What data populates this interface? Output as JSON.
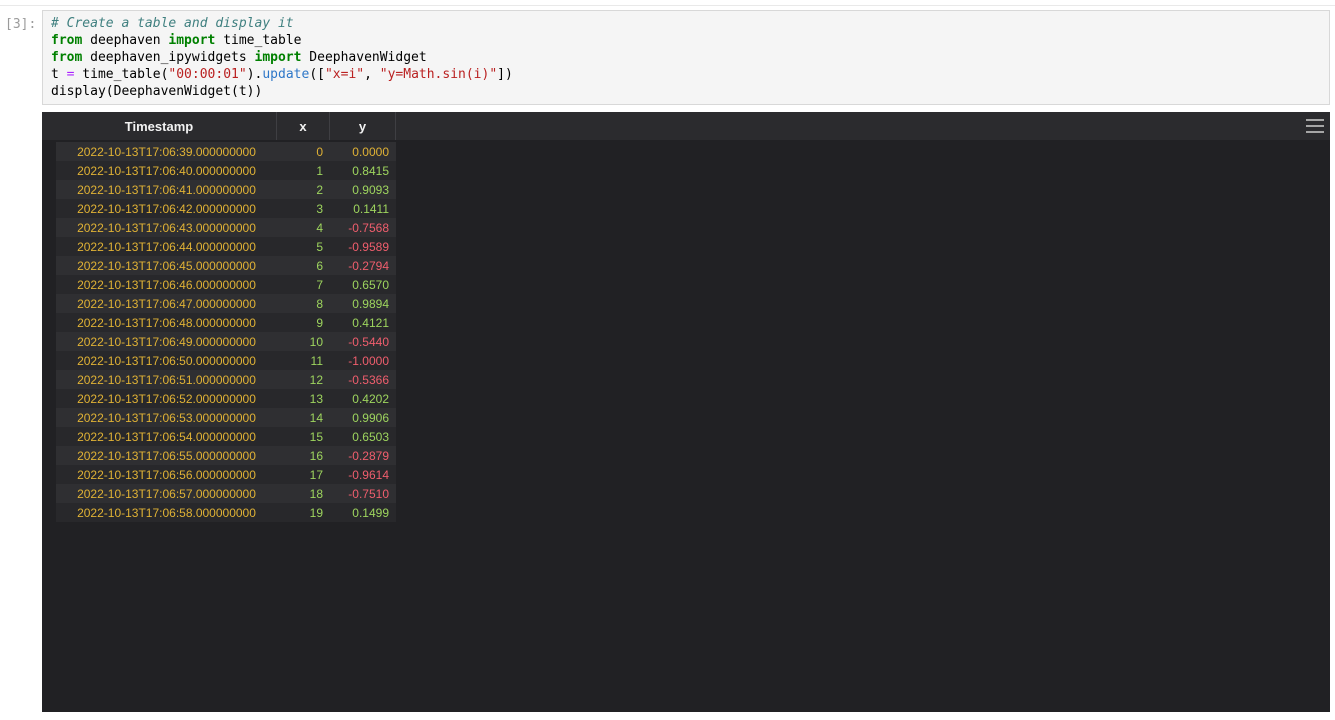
{
  "notebook": {
    "prompt": "[3]:",
    "code_lines": [
      [
        {
          "text": "# Create a table and display it",
          "type": "comment"
        }
      ],
      [
        {
          "text": "from",
          "type": "keyword"
        },
        {
          "text": " deephaven ",
          "type": "plain"
        },
        {
          "text": "import",
          "type": "keyword"
        },
        {
          "text": " time_table",
          "type": "plain"
        }
      ],
      [
        {
          "text": "from",
          "type": "keyword"
        },
        {
          "text": " deephaven_ipywidgets ",
          "type": "plain"
        },
        {
          "text": "import",
          "type": "keyword"
        },
        {
          "text": " DeephavenWidget",
          "type": "plain"
        }
      ],
      [
        {
          "text": "t ",
          "type": "plain"
        },
        {
          "text": "=",
          "type": "operator"
        },
        {
          "text": " time_table(",
          "type": "plain"
        },
        {
          "text": "\"00:00:01\"",
          "type": "string"
        },
        {
          "text": ").",
          "type": "plain"
        },
        {
          "text": "update",
          "type": "property"
        },
        {
          "text": "([",
          "type": "plain"
        },
        {
          "text": "\"x=i\"",
          "type": "string"
        },
        {
          "text": ", ",
          "type": "plain"
        },
        {
          "text": "\"y=Math.sin(i)\"",
          "type": "string"
        },
        {
          "text": "])",
          "type": "plain"
        }
      ],
      [
        {
          "text": "display(DeephavenWidget(t))",
          "type": "plain"
        }
      ]
    ]
  },
  "table": {
    "columns": [
      {
        "label": "Timestamp"
      },
      {
        "label": "x"
      },
      {
        "label": "y"
      }
    ],
    "rows": [
      {
        "timestamp": "2022-10-13T17:06:39.000000000",
        "x": "0",
        "y": "0.0000"
      },
      {
        "timestamp": "2022-10-13T17:06:40.000000000",
        "x": "1",
        "y": "0.8415"
      },
      {
        "timestamp": "2022-10-13T17:06:41.000000000",
        "x": "2",
        "y": "0.9093"
      },
      {
        "timestamp": "2022-10-13T17:06:42.000000000",
        "x": "3",
        "y": "0.1411"
      },
      {
        "timestamp": "2022-10-13T17:06:43.000000000",
        "x": "4",
        "y": "-0.7568"
      },
      {
        "timestamp": "2022-10-13T17:06:44.000000000",
        "x": "5",
        "y": "-0.9589"
      },
      {
        "timestamp": "2022-10-13T17:06:45.000000000",
        "x": "6",
        "y": "-0.2794"
      },
      {
        "timestamp": "2022-10-13T17:06:46.000000000",
        "x": "7",
        "y": "0.6570"
      },
      {
        "timestamp": "2022-10-13T17:06:47.000000000",
        "x": "8",
        "y": "0.9894"
      },
      {
        "timestamp": "2022-10-13T17:06:48.000000000",
        "x": "9",
        "y": "0.4121"
      },
      {
        "timestamp": "2022-10-13T17:06:49.000000000",
        "x": "10",
        "y": "-0.5440"
      },
      {
        "timestamp": "2022-10-13T17:06:50.000000000",
        "x": "11",
        "y": "-1.0000"
      },
      {
        "timestamp": "2022-10-13T17:06:51.000000000",
        "x": "12",
        "y": "-0.5366"
      },
      {
        "timestamp": "2022-10-13T17:06:52.000000000",
        "x": "13",
        "y": "0.4202"
      },
      {
        "timestamp": "2022-10-13T17:06:53.000000000",
        "x": "14",
        "y": "0.9906"
      },
      {
        "timestamp": "2022-10-13T17:06:54.000000000",
        "x": "15",
        "y": "0.6503"
      },
      {
        "timestamp": "2022-10-13T17:06:55.000000000",
        "x": "16",
        "y": "-0.2879"
      },
      {
        "timestamp": "2022-10-13T17:06:56.000000000",
        "x": "17",
        "y": "-0.9614"
      },
      {
        "timestamp": "2022-10-13T17:06:57.000000000",
        "x": "18",
        "y": "-0.7510"
      },
      {
        "timestamp": "2022-10-13T17:06:58.000000000",
        "x": "19",
        "y": "0.1499"
      }
    ]
  },
  "colors": {
    "timestamp_and_zero": "#e0b235",
    "positive": "#9ed55e",
    "negative": "#f05e6d",
    "comment": "#408080",
    "keyword": "#008000",
    "string": "#ba2121",
    "operator": "#aa22ff",
    "property": "#2e77c8",
    "header_bg": "#2b2b2e",
    "widget_bg": "#212124",
    "row_even_bg": "#2f2f32",
    "row_odd_bg": "#28282b"
  }
}
